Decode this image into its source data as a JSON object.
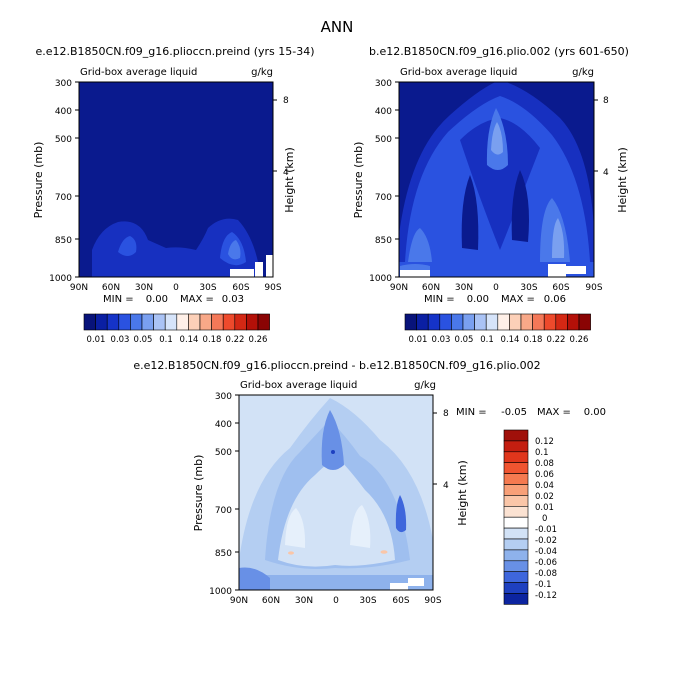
{
  "figure": {
    "title": "ANN"
  },
  "colorbar_top": {
    "labels": [
      "0.01",
      "0.03",
      "0.05",
      "0.1",
      "0.14",
      "0.18",
      "0.22",
      "0.26"
    ],
    "colors": [
      "#08137a",
      "#0a1fa3",
      "#1533c8",
      "#2a52e0",
      "#4a78ea",
      "#7aa0f0",
      "#aac3f5",
      "#d6e4fa",
      "#fff0e8",
      "#fcd0b8",
      "#f8a888",
      "#f47858",
      "#ee4a2c",
      "#d42814",
      "#b41008",
      "#8a0404"
    ]
  },
  "colorbar_diff": {
    "labels": [
      "0.12",
      "0.1",
      "0.08",
      "0.06",
      "0.04",
      "0.02",
      "0.01",
      "0",
      "-0.01",
      "-0.02",
      "-0.04",
      "-0.06",
      "-0.08",
      "-0.1",
      "-0.12"
    ],
    "colors": [
      "#a0100a",
      "#c41e10",
      "#e0361c",
      "#f05430",
      "#f57a50",
      "#f8a078",
      "#fac6a8",
      "#fbe2d2",
      "#ffffff",
      "#d2e2f6",
      "#b4cef2",
      "#8eb2ec",
      "#6890e6",
      "#3e66dc",
      "#1e40c0",
      "#0c24a0"
    ]
  },
  "chart_data": [
    {
      "type": "heatmap",
      "title": "e.e12.B1850CN.f09_g16.plioccn.preind (yrs 15-34)",
      "subtitle_left": "Grid-box average liquid",
      "subtitle_right": "g/kg",
      "ylabel": "Pressure (mb)",
      "ylabel_right": "Height (km)",
      "x_ticks": [
        "90N",
        "60N",
        "30N",
        "0",
        "30S",
        "60S",
        "90S"
      ],
      "y_ticks": [
        "300",
        "400",
        "500",
        "700",
        "850",
        "1000"
      ],
      "y_ticks_right": [
        "8",
        "4"
      ],
      "stats": {
        "min_label": "MIN =",
        "min": "0.00",
        "max_label": "MAX =",
        "max": "0.03"
      },
      "ylim": [
        1000,
        300
      ]
    },
    {
      "type": "heatmap",
      "title": "b.e12.B1850CN.f09_g16.plio.002 (yrs 601-650)",
      "subtitle_left": "Grid-box average liquid",
      "subtitle_right": "g/kg",
      "ylabel": "Pressure (mb)",
      "ylabel_right": "Height (km)",
      "x_ticks": [
        "90N",
        "60N",
        "30N",
        "0",
        "30S",
        "60S",
        "90S"
      ],
      "y_ticks": [
        "300",
        "400",
        "500",
        "700",
        "850",
        "1000"
      ],
      "y_ticks_right": [
        "8",
        "4"
      ],
      "stats": {
        "min_label": "MIN =",
        "min": "0.00",
        "max_label": "MAX =",
        "max": "0.06"
      },
      "ylim": [
        1000,
        300
      ]
    },
    {
      "type": "heatmap",
      "title": "e.e12.B1850CN.f09_g16.plioccn.preind - b.e12.B1850CN.f09_g16.plio.002",
      "subtitle_left": "Grid-box average liquid",
      "subtitle_right": "g/kg",
      "ylabel": "Pressure (mb)",
      "ylabel_right": "Height (km)",
      "x_ticks": [
        "90N",
        "60N",
        "30N",
        "0",
        "30S",
        "60S",
        "90S"
      ],
      "y_ticks": [
        "300",
        "400",
        "500",
        "700",
        "850",
        "1000"
      ],
      "y_ticks_right": [
        "8",
        "4"
      ],
      "stats": {
        "min_label": "MIN =",
        "min": "-0.05",
        "max_label": "MAX =",
        "max": "0.00"
      },
      "ylim": [
        1000,
        300
      ]
    }
  ]
}
